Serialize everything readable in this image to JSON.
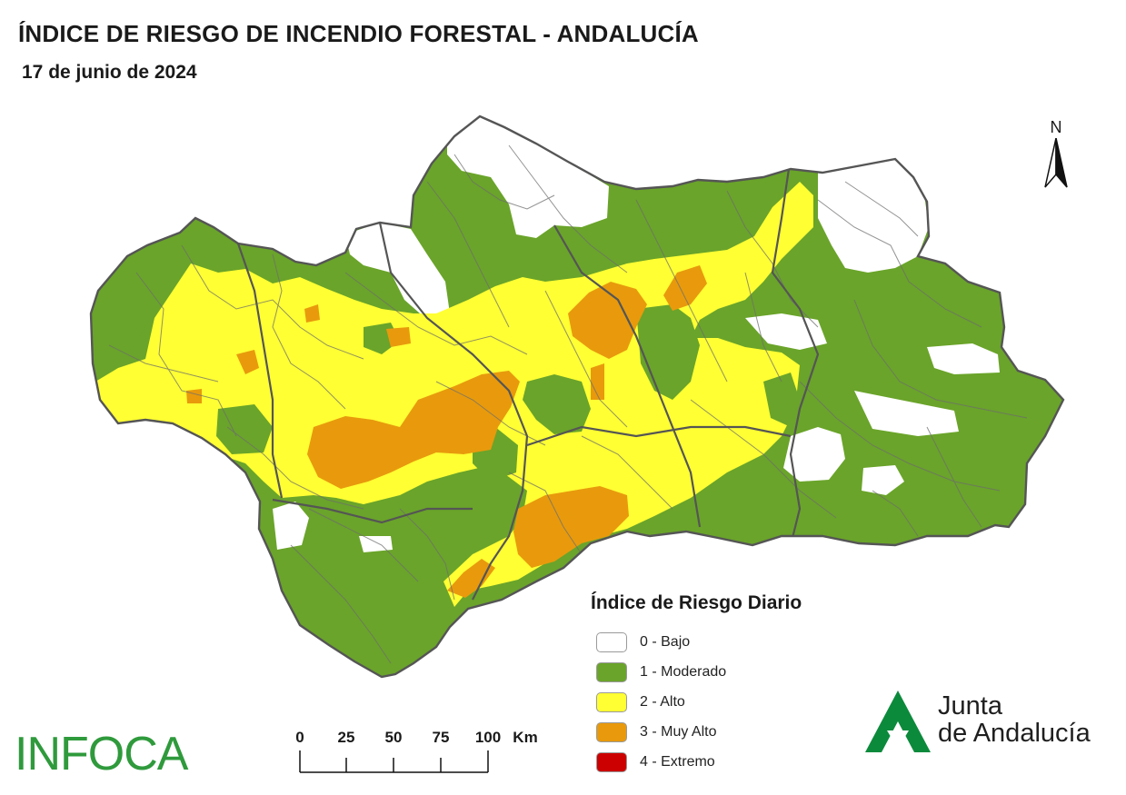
{
  "header": {
    "title": "ÍNDICE DE RIESGO DE INCENDIO FORESTAL - ANDALUCÍA",
    "date": "17 de junio de 2024"
  },
  "map": {
    "north_label": "N",
    "colors": {
      "outline": "#5f5f5f",
      "bajo": "#ffffff",
      "moderado": "#6aa42a",
      "alto": "#ffff33",
      "muy_alto": "#e89a0c",
      "extremo": "#cc0000"
    }
  },
  "legend": {
    "title": "Índice de Riesgo Diario",
    "items": [
      {
        "label": "0 - Bajo",
        "color": "#ffffff"
      },
      {
        "label": "1 - Moderado",
        "color": "#6aa42a"
      },
      {
        "label": "2 - Alto",
        "color": "#ffff33"
      },
      {
        "label": "3 - Muy Alto",
        "color": "#e89a0c"
      },
      {
        "label": "4 - Extremo",
        "color": "#cc0000"
      }
    ]
  },
  "scale_bar": {
    "ticks": [
      "0",
      "25",
      "50",
      "75",
      "100"
    ],
    "unit": "Km"
  },
  "footer": {
    "infoca_logo": "INFOCA",
    "junta_line1": "Junta",
    "junta_line2": "de Andalucía",
    "junta_brand_color": "#0c8a3c"
  }
}
